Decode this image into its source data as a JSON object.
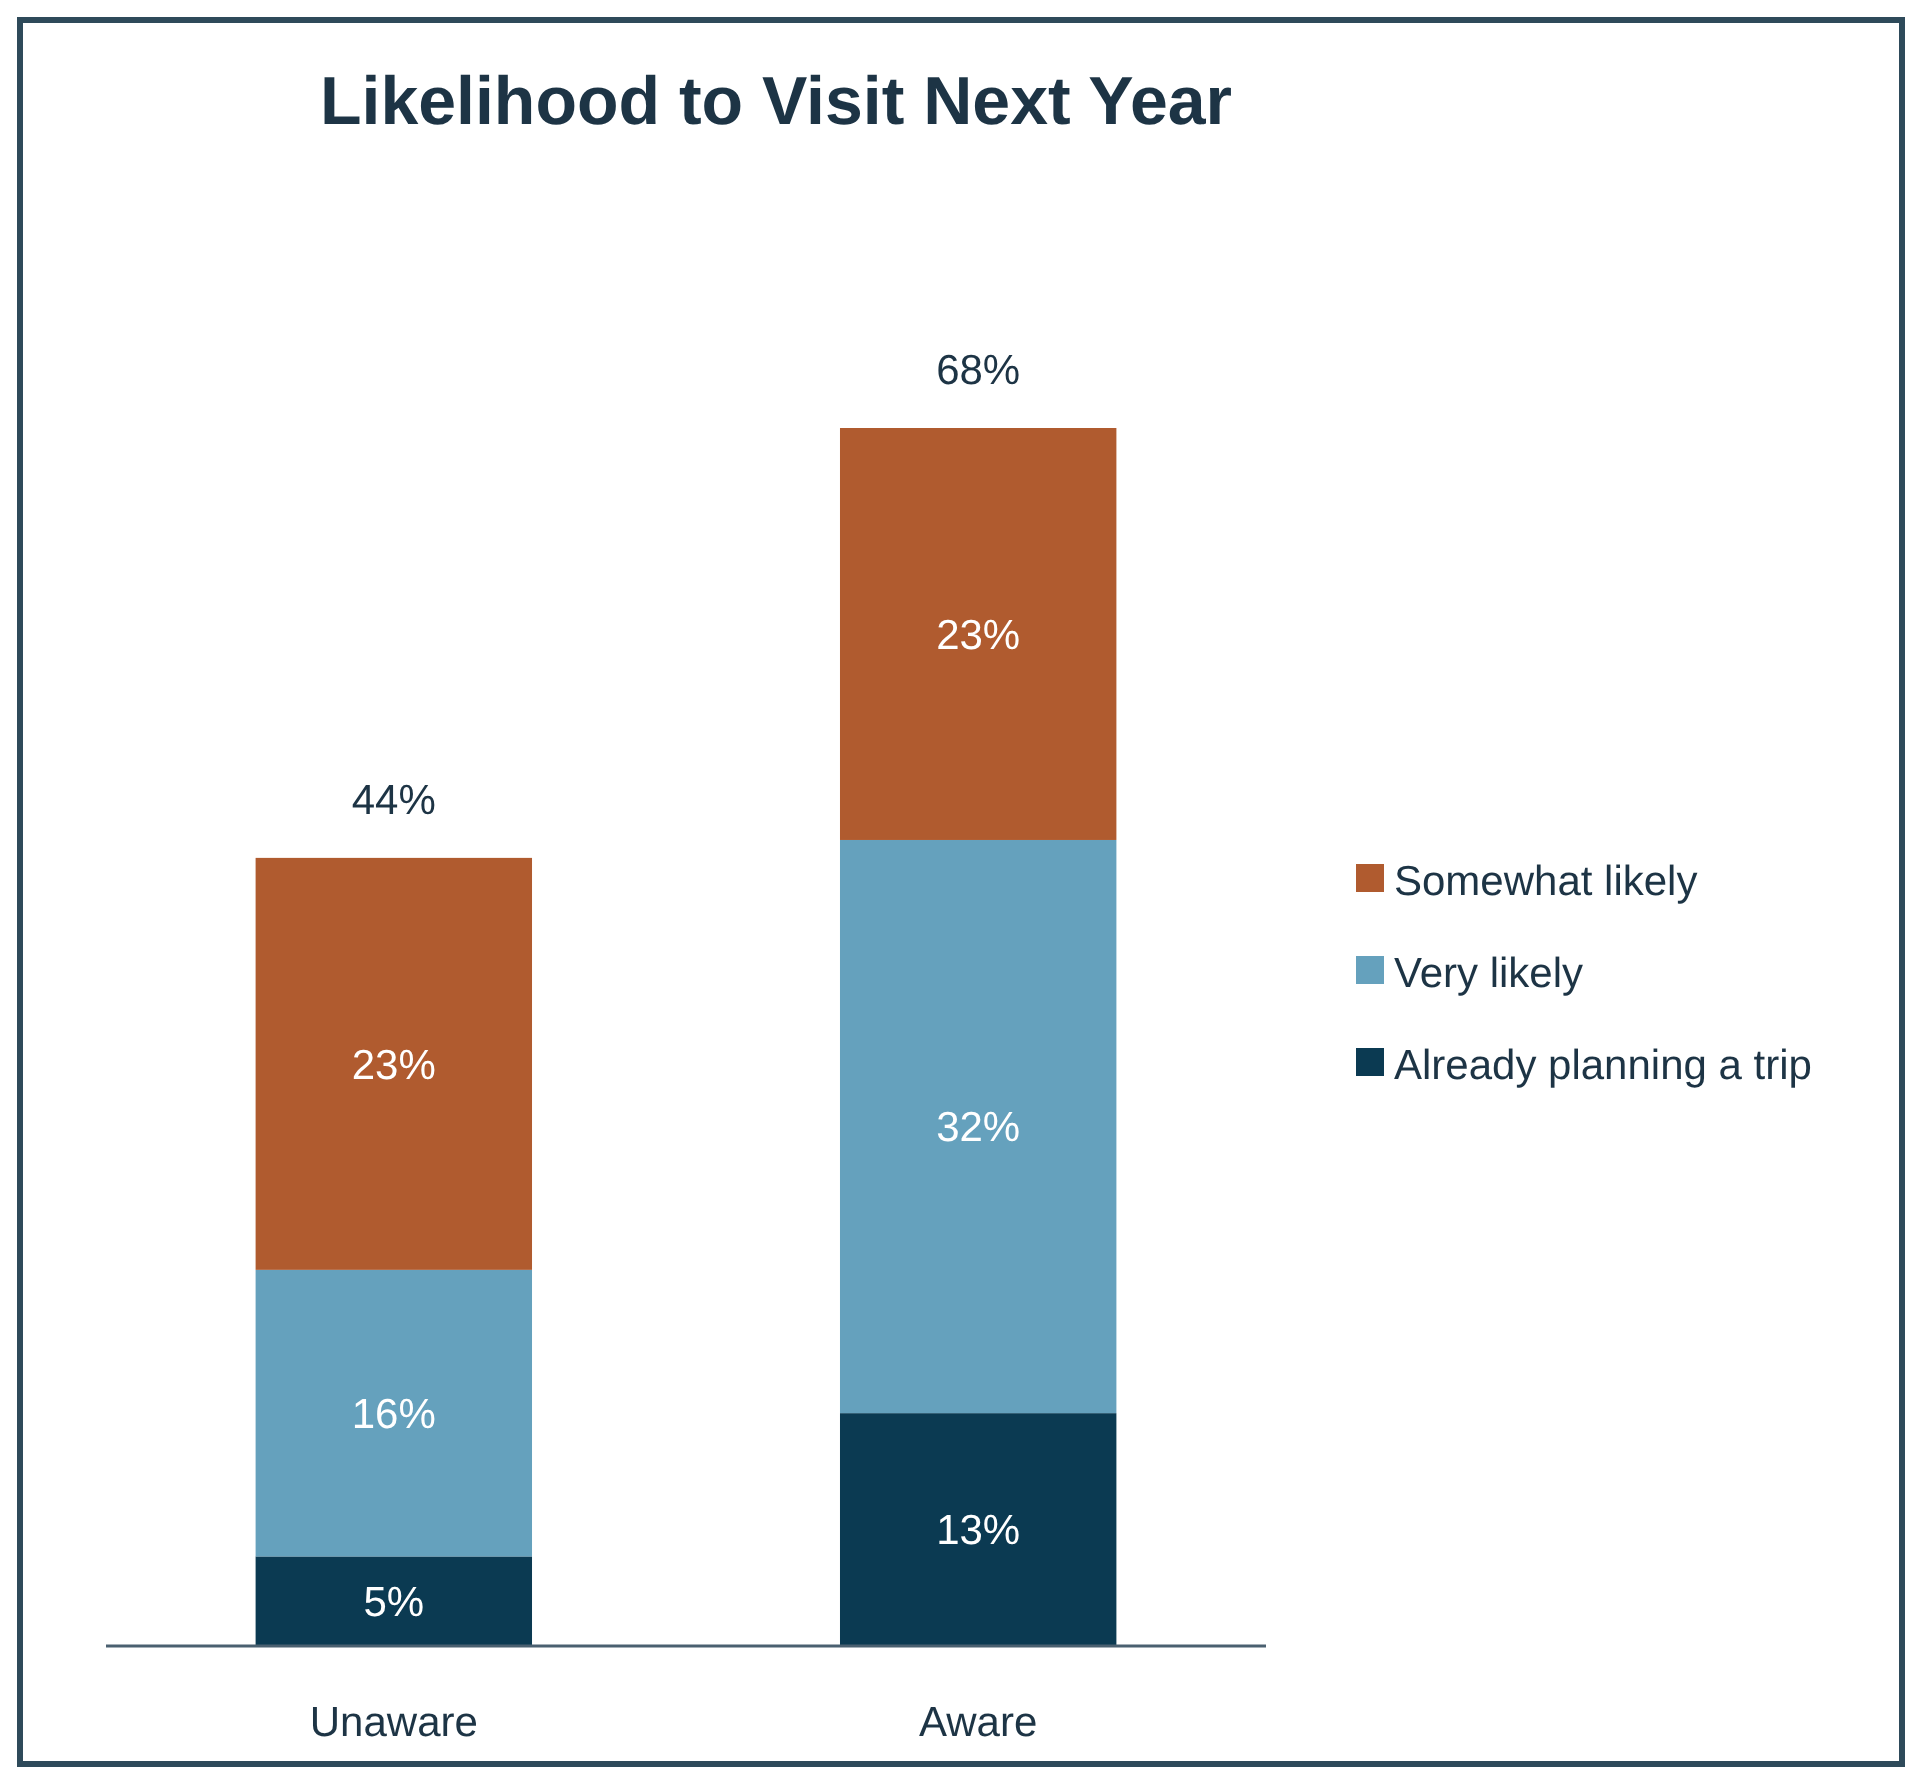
{
  "chart_data": {
    "type": "bar",
    "title": "Likelihood to Visit Next Year",
    "categories": [
      "Unaware",
      "Aware"
    ],
    "stacked": true,
    "legend": "right",
    "series": [
      {
        "name": "Already planning a trip",
        "color": "#0b3a52",
        "values": [
          5,
          13
        ],
        "value_labels": [
          "5%",
          "13%"
        ]
      },
      {
        "name": "Very likely",
        "color": "#65a1bd",
        "values": [
          16,
          32
        ],
        "value_labels": [
          "16%",
          "32%"
        ]
      },
      {
        "name": "Somewhat likely",
        "color": "#b05b2f",
        "values": [
          23,
          23
        ],
        "value_labels": [
          "23%",
          "23%"
        ]
      }
    ],
    "totals": [
      "44%",
      "68%"
    ]
  }
}
